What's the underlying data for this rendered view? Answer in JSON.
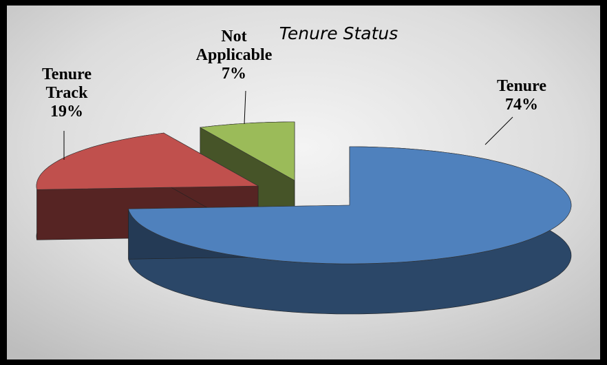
{
  "chart_data": {
    "type": "pie3d",
    "title": "Tenure Status",
    "categories": [
      "Tenure",
      "Tenure Track",
      "Not Applicable"
    ],
    "values": [
      74,
      19,
      7
    ],
    "value_labels": [
      "74%",
      "19%",
      "7%"
    ],
    "colors": [
      "#4f81bd",
      "#c0504d",
      "#9bbb59"
    ]
  }
}
